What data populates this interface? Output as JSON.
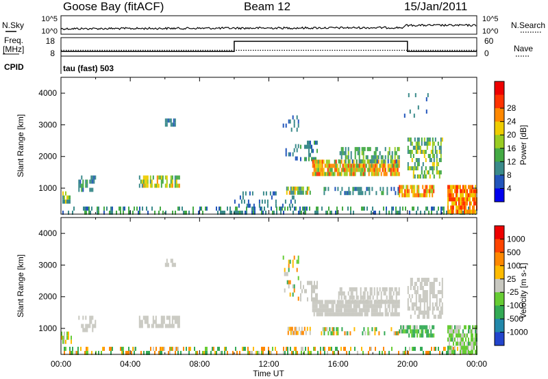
{
  "header": {
    "station": "Goose Bay (fitACF)",
    "beam": "Beam 12",
    "date": "15/Jan/2011"
  },
  "top_panels": {
    "nsky_label": "N.Sky",
    "nsearch_label": "N.Search",
    "freq_label_line1": "Freq.",
    "freq_label_line2": "[MHz]",
    "nave_label": "Nave",
    "cpid_label": "CPID",
    "cpid_value": "tau (fast) 503",
    "noise_left_ticks": [
      "10^5",
      "10^0"
    ],
    "noise_right_ticks": [
      "10^5",
      "10^0"
    ],
    "freq_ticks": [
      "18",
      "8"
    ],
    "nave_ticks": [
      "60",
      "0"
    ],
    "freq_step": {
      "x": [
        0,
        10,
        10,
        20,
        20,
        24
      ],
      "y": [
        10.5,
        10.5,
        16,
        16,
        10.5,
        10.5
      ]
    }
  },
  "chart_data": [
    {
      "type": "heatmap",
      "name": "power",
      "xlabel": "Time UT",
      "ylabel": "Slant Range [km]",
      "xlim": [
        0,
        24
      ],
      "ylim": [
        180,
        4500
      ],
      "xticks": [
        "00:00",
        "04:00",
        "08:00",
        "12:00",
        "16:00",
        "20:00",
        "00:00"
      ],
      "yticks": [
        1000,
        2000,
        3000,
        4000
      ],
      "colorbar": {
        "label": "Power [dB]",
        "ticks": [
          "4",
          "8",
          "12",
          "16",
          "20",
          "24",
          "28"
        ],
        "colors": [
          "#0000ee",
          "#2255bb",
          "#3a8a8a",
          "#44aa44",
          "#99cc22",
          "#eecc00",
          "#ff8800",
          "#ff3300",
          "#ee0000"
        ]
      },
      "regions": [
        {
          "t": [
            0.0,
            24.0
          ],
          "r": [
            200,
            420
          ],
          "v": [
            4,
            14
          ],
          "d": 0.35
        },
        {
          "t": [
            0.0,
            0.6
          ],
          "r": [
            520,
            900
          ],
          "v": [
            6,
            22
          ],
          "d": 0.55
        },
        {
          "t": [
            1.0,
            2.0
          ],
          "r": [
            900,
            1400
          ],
          "v": [
            5,
            12
          ],
          "d": 0.45
        },
        {
          "t": [
            4.5,
            6.8
          ],
          "r": [
            1050,
            1400
          ],
          "v": [
            6,
            24
          ],
          "d": 0.7
        },
        {
          "t": [
            6.0,
            6.6
          ],
          "r": [
            3000,
            3200
          ],
          "v": [
            5,
            10
          ],
          "d": 0.45
        },
        {
          "t": [
            10.0,
            13.5
          ],
          "r": [
            420,
            900
          ],
          "v": [
            4,
            10
          ],
          "d": 0.15
        },
        {
          "t": [
            13.0,
            14.4
          ],
          "r": [
            800,
            1050
          ],
          "v": [
            6,
            26
          ],
          "d": 0.75
        },
        {
          "t": [
            12.8,
            13.7
          ],
          "r": [
            2000,
            3300
          ],
          "v": [
            4,
            10
          ],
          "d": 0.2
        },
        {
          "t": [
            13.8,
            14.8
          ],
          "r": [
            1900,
            2500
          ],
          "v": [
            4,
            12
          ],
          "d": 0.4
        },
        {
          "t": [
            14.5,
            19.5
          ],
          "r": [
            1500,
            1900
          ],
          "v": [
            10,
            28
          ],
          "d": 0.8
        },
        {
          "t": [
            16.0,
            19.5
          ],
          "r": [
            1800,
            2300
          ],
          "v": [
            5,
            16
          ],
          "d": 0.55
        },
        {
          "t": [
            15.0,
            19.5
          ],
          "r": [
            860,
            1040
          ],
          "v": [
            4,
            12
          ],
          "d": 0.4
        },
        {
          "t": [
            19.5,
            21.5
          ],
          "r": [
            800,
            1100
          ],
          "v": [
            16,
            28
          ],
          "d": 0.75
        },
        {
          "t": [
            20.0,
            22.0
          ],
          "r": [
            1400,
            2600
          ],
          "v": [
            6,
            20
          ],
          "d": 0.5
        },
        {
          "t": [
            22.3,
            24.0
          ],
          "r": [
            250,
            1100
          ],
          "v": [
            18,
            30
          ],
          "d": 0.85
        },
        {
          "t": [
            19.8,
            21.2
          ],
          "r": [
            3000,
            4000
          ],
          "v": [
            4,
            10
          ],
          "d": 0.06
        }
      ]
    },
    {
      "type": "heatmap",
      "name": "velocity",
      "xlabel": "Time UT",
      "ylabel": "Slant Range [km]",
      "xlim": [
        0,
        24
      ],
      "ylim": [
        180,
        4500
      ],
      "xticks": [
        "00:00",
        "04:00",
        "08:00",
        "12:00",
        "16:00",
        "20:00",
        "00:00"
      ],
      "yticks": [
        1000,
        2000,
        3000,
        4000
      ],
      "colorbar": {
        "label": "Velocity [m s-1]",
        "ticks": [
          "1000",
          "500",
          "100",
          "25",
          "-25",
          "-100",
          "-500",
          "-1000"
        ],
        "colors": [
          "#2244cc",
          "#2288aa",
          "#33aa55",
          "#66cc33",
          "#c8c8c0",
          "#ffbb00",
          "#ff8800",
          "#ff4400",
          "#ee0000"
        ]
      },
      "regions": [
        {
          "t": [
            0.0,
            24.0
          ],
          "r": [
            200,
            420
          ],
          "v": [
            -300,
            300
          ],
          "d": 0.35
        },
        {
          "t": [
            0.0,
            0.6
          ],
          "r": [
            520,
            900
          ],
          "v": [
            -60,
            60
          ],
          "d": 0.55
        },
        {
          "t": [
            1.0,
            2.0
          ],
          "r": [
            900,
            1400
          ],
          "v": [
            -20,
            20
          ],
          "d": 0.45
        },
        {
          "t": [
            4.5,
            6.8
          ],
          "r": [
            1050,
            1400
          ],
          "v": [
            -20,
            20
          ],
          "d": 0.7
        },
        {
          "t": [
            6.0,
            6.6
          ],
          "r": [
            3000,
            3200
          ],
          "v": [
            -20,
            20
          ],
          "d": 0.4
        },
        {
          "t": [
            13.0,
            14.4
          ],
          "r": [
            800,
            1050
          ],
          "v": [
            -150,
            20
          ],
          "d": 0.7
        },
        {
          "t": [
            12.8,
            13.7
          ],
          "r": [
            2000,
            3300
          ],
          "v": [
            -200,
            200
          ],
          "d": 0.2
        },
        {
          "t": [
            13.8,
            14.8
          ],
          "r": [
            1900,
            2500
          ],
          "v": [
            -20,
            20
          ],
          "d": 0.4
        },
        {
          "t": [
            14.5,
            19.5
          ],
          "r": [
            1500,
            1900
          ],
          "v": [
            -20,
            20
          ],
          "d": 0.85
        },
        {
          "t": [
            16.0,
            19.5
          ],
          "r": [
            1800,
            2300
          ],
          "v": [
            -20,
            20
          ],
          "d": 0.55
        },
        {
          "t": [
            15.0,
            19.5
          ],
          "r": [
            860,
            1040
          ],
          "v": [
            -200,
            200
          ],
          "d": 0.35
        },
        {
          "t": [
            19.5,
            21.5
          ],
          "r": [
            800,
            1100
          ],
          "v": [
            -20,
            300
          ],
          "d": 0.65
        },
        {
          "t": [
            20.0,
            22.0
          ],
          "r": [
            1400,
            2600
          ],
          "v": [
            -20,
            20
          ],
          "d": 0.55
        },
        {
          "t": [
            22.3,
            24.0
          ],
          "r": [
            250,
            1100
          ],
          "v": [
            -20,
            120
          ],
          "d": 0.7
        }
      ]
    }
  ]
}
